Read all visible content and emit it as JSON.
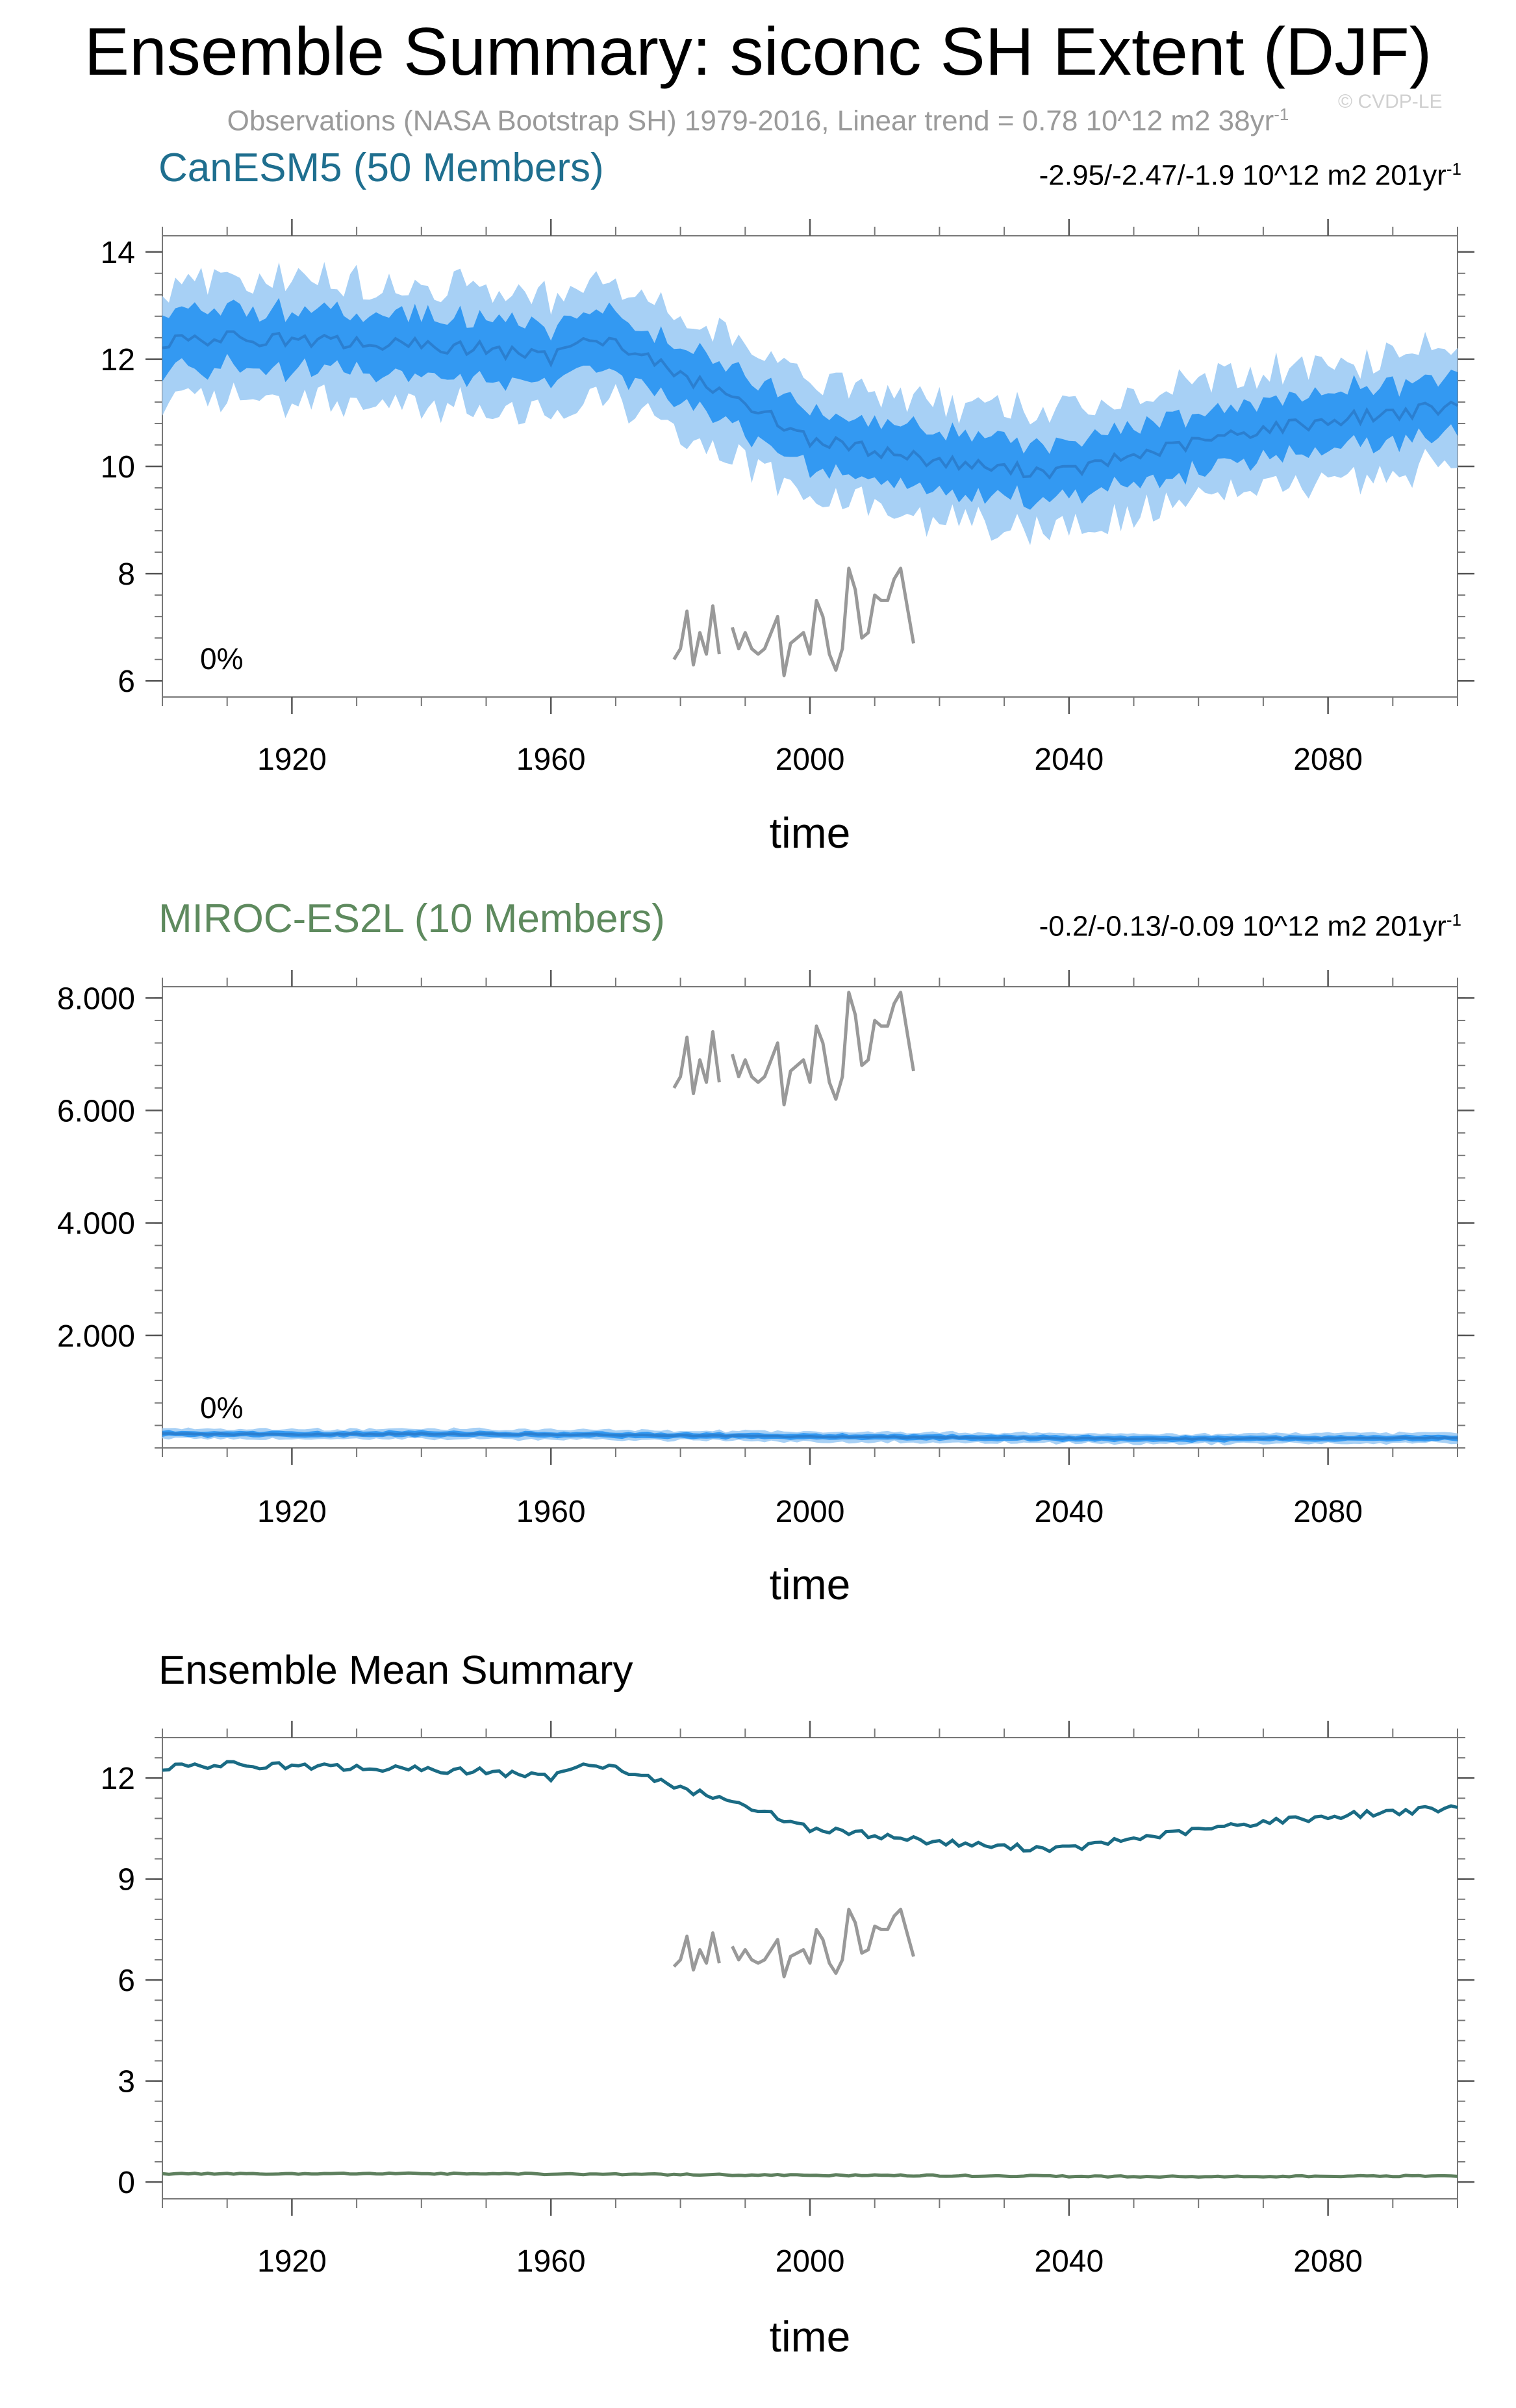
{
  "title": "Ensemble Summary: siconc SH Extent (DJF)",
  "subtitle": "Observations (NASA Bootstrap SH) 1979-2016, Linear trend = 0.78 10^12 m2 38yr",
  "subtitle_sup": "-1",
  "watermark": "© CVDP-LE",
  "colors": {
    "canesm_title": "#1f6f8f",
    "miroc_title": "#5e8a5e",
    "band_outer": "#a7d0f5",
    "band_inner": "#3399f2",
    "mean_line": "#2b7fd0",
    "obs_line": "#999999",
    "canesm_mean": "#1a6b84",
    "miroc_mean": "#5d7f5d"
  },
  "chart_data": [
    {
      "id": "canesm5",
      "type": "area",
      "title": "CanESM5 (50 Members)",
      "trend_text": "-2.95/-2.47/-1.9 10^12 m2 201yr",
      "trend_sup": "-1",
      "percent_label": "0%",
      "xlabel": "time",
      "ylabel": "",
      "xlim": [
        1900,
        2100
      ],
      "ylim": [
        5.7,
        14.3
      ],
      "xticks": [
        1920,
        1960,
        2000,
        2040,
        2080
      ],
      "xtick_labels": [
        "1920",
        "1960",
        "2000",
        "2040",
        "2080"
      ],
      "yticks": [
        6,
        8,
        10,
        12,
        14
      ],
      "ytick_labels": [
        "6",
        "8",
        "10",
        "12",
        "14"
      ],
      "series": [
        {
          "name": "ensemble mean",
          "x": [
            1900,
            1910,
            1920,
            1930,
            1940,
            1950,
            1960,
            1965,
            1970,
            1980,
            1990,
            2000,
            2010,
            2020,
            2030,
            2040,
            2050,
            2060,
            2070,
            2080,
            2090,
            2100
          ],
          "values": [
            12.3,
            12.4,
            12.35,
            12.3,
            12.25,
            12.2,
            12.0,
            12.5,
            12.3,
            11.7,
            11.2,
            10.5,
            10.3,
            10.1,
            9.95,
            9.9,
            10.2,
            10.45,
            10.7,
            10.85,
            11.0,
            11.1
          ]
        },
        {
          "name": "ensemble spread (inner)",
          "half_width": 0.55
        },
        {
          "name": "ensemble spread (outer)",
          "half_width": 1.1
        }
      ],
      "observations": {
        "name": "NASA Bootstrap SH",
        "x": [
          1979,
          1980,
          1981,
          1982,
          1983,
          1984,
          1985,
          1986,
          1987,
          1988,
          1989,
          1990,
          1991,
          1992,
          1993,
          1994,
          1995,
          1996,
          1997,
          1998,
          1999,
          2000,
          2001,
          2002,
          2003,
          2004,
          2005,
          2006,
          2007,
          2008,
          2009,
          2010,
          2011,
          2012,
          2013,
          2014,
          2015,
          2016
        ],
        "values": [
          6.4,
          6.6,
          7.3,
          6.3,
          6.9,
          6.5,
          7.4,
          6.5,
          null,
          7.0,
          6.6,
          6.9,
          6.6,
          6.5,
          6.6,
          6.9,
          7.2,
          6.1,
          6.7,
          6.8,
          6.9,
          6.5,
          7.5,
          7.2,
          6.5,
          6.2,
          6.6,
          8.1,
          7.7,
          6.8,
          6.9,
          7.6,
          7.5,
          7.5,
          7.9,
          8.1,
          7.4,
          6.7
        ]
      }
    },
    {
      "id": "miroc-es2l",
      "type": "area",
      "title": "MIROC-ES2L (10 Members)",
      "trend_text": "-0.2/-0.13/-0.09 10^12 m2 201yr",
      "trend_sup": "-1",
      "percent_label": "0%",
      "xlabel": "time",
      "ylabel": "",
      "xlim": [
        1900,
        2100
      ],
      "ylim": [
        0,
        8.2
      ],
      "xticks": [
        1920,
        1960,
        2000,
        2040,
        2080
      ],
      "xtick_labels": [
        "1920",
        "1960",
        "2000",
        "2040",
        "2080"
      ],
      "yticks": [
        2,
        4,
        6,
        8
      ],
      "ytick_labels": [
        "2.000",
        "4.000",
        "6.000",
        "8.000"
      ],
      "series": [
        {
          "name": "ensemble mean",
          "x": [
            1900,
            1920,
            1940,
            1960,
            1980,
            2000,
            2020,
            2040,
            2060,
            2080,
            2100
          ],
          "values": [
            0.25,
            0.24,
            0.25,
            0.24,
            0.22,
            0.2,
            0.19,
            0.17,
            0.16,
            0.17,
            0.18
          ]
        },
        {
          "name": "ensemble spread (inner)",
          "half_width": 0.05
        },
        {
          "name": "ensemble spread (outer)",
          "half_width": 0.09
        }
      ],
      "observations": {
        "name": "NASA Bootstrap SH",
        "x": [
          1979,
          1980,
          1981,
          1982,
          1983,
          1984,
          1985,
          1986,
          1987,
          1988,
          1989,
          1990,
          1991,
          1992,
          1993,
          1994,
          1995,
          1996,
          1997,
          1998,
          1999,
          2000,
          2001,
          2002,
          2003,
          2004,
          2005,
          2006,
          2007,
          2008,
          2009,
          2010,
          2011,
          2012,
          2013,
          2014,
          2015,
          2016
        ],
        "values": [
          6.4,
          6.6,
          7.3,
          6.3,
          6.9,
          6.5,
          7.4,
          6.5,
          null,
          7.0,
          6.6,
          6.9,
          6.6,
          6.5,
          6.6,
          6.9,
          7.2,
          6.1,
          6.7,
          6.8,
          6.9,
          6.5,
          7.5,
          7.2,
          6.5,
          6.2,
          6.6,
          8.1,
          7.7,
          6.8,
          6.9,
          7.6,
          7.5,
          7.5,
          7.9,
          8.1,
          7.4,
          6.7
        ]
      }
    },
    {
      "id": "ensemble-mean-summary",
      "type": "line",
      "title": "Ensemble Mean Summary",
      "xlabel": "time",
      "ylabel": "",
      "xlim": [
        1900,
        2100
      ],
      "ylim": [
        -0.5,
        13.2
      ],
      "xticks": [
        1920,
        1960,
        2000,
        2040,
        2080
      ],
      "xtick_labels": [
        "1920",
        "1960",
        "2000",
        "2040",
        "2080"
      ],
      "yticks": [
        0,
        3,
        6,
        9,
        12
      ],
      "ytick_labels": [
        "0",
        "3",
        "6",
        "9",
        "12"
      ],
      "series": [
        {
          "name": "CanESM5 mean",
          "x": [
            1900,
            1910,
            1920,
            1930,
            1940,
            1950,
            1960,
            1965,
            1970,
            1980,
            1990,
            2000,
            2010,
            2020,
            2030,
            2040,
            2050,
            2060,
            2070,
            2080,
            2090,
            2100
          ],
          "values": [
            12.3,
            12.4,
            12.35,
            12.3,
            12.25,
            12.2,
            12.0,
            12.5,
            12.3,
            11.7,
            11.2,
            10.5,
            10.3,
            10.1,
            9.95,
            9.9,
            10.2,
            10.45,
            10.7,
            10.85,
            11.0,
            11.1
          ]
        },
        {
          "name": "MIROC-ES2L mean",
          "x": [
            1900,
            1920,
            1940,
            1960,
            1980,
            2000,
            2020,
            2040,
            2060,
            2080,
            2100
          ],
          "values": [
            0.25,
            0.24,
            0.25,
            0.24,
            0.22,
            0.2,
            0.19,
            0.17,
            0.16,
            0.17,
            0.18
          ]
        }
      ],
      "observations": {
        "name": "NASA Bootstrap SH",
        "x": [
          1979,
          1980,
          1981,
          1982,
          1983,
          1984,
          1985,
          1986,
          1987,
          1988,
          1989,
          1990,
          1991,
          1992,
          1993,
          1994,
          1995,
          1996,
          1997,
          1998,
          1999,
          2000,
          2001,
          2002,
          2003,
          2004,
          2005,
          2006,
          2007,
          2008,
          2009,
          2010,
          2011,
          2012,
          2013,
          2014,
          2015,
          2016
        ],
        "values": [
          6.4,
          6.6,
          7.3,
          6.3,
          6.9,
          6.5,
          7.4,
          6.5,
          null,
          7.0,
          6.6,
          6.9,
          6.6,
          6.5,
          6.6,
          6.9,
          7.2,
          6.1,
          6.7,
          6.8,
          6.9,
          6.5,
          7.5,
          7.2,
          6.5,
          6.2,
          6.6,
          8.1,
          7.7,
          6.8,
          6.9,
          7.6,
          7.5,
          7.5,
          7.9,
          8.1,
          7.4,
          6.7
        ]
      }
    }
  ]
}
